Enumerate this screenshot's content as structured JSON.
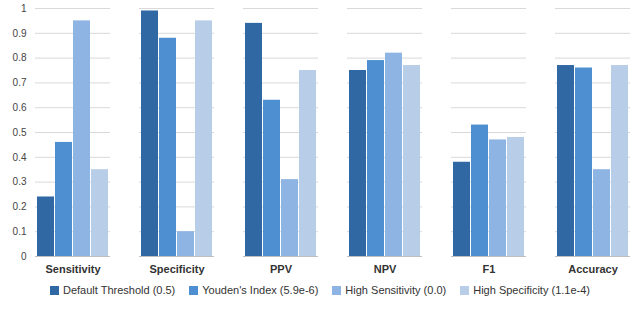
{
  "chart_data": {
    "type": "bar",
    "categories": [
      "Sensitivity",
      "Specificity",
      "PPV",
      "NPV",
      "F1",
      "Accuracy"
    ],
    "series": [
      {
        "name": "Default Threshold (0.5)",
        "color": "#2f68a3",
        "values": [
          0.24,
          0.99,
          0.94,
          0.75,
          0.38,
          0.77
        ]
      },
      {
        "name": "Youden's Index (5.9e-6)",
        "color": "#4d8fd0",
        "values": [
          0.46,
          0.88,
          0.63,
          0.79,
          0.53,
          0.76
        ]
      },
      {
        "name": "High Sensitivity (0.0)",
        "color": "#8eb4e3",
        "values": [
          0.95,
          0.1,
          0.31,
          0.82,
          0.47,
          0.35
        ]
      },
      {
        "name": "High Specificity (1.1e-4)",
        "color": "#b7cde8",
        "values": [
          0.35,
          0.95,
          0.75,
          0.77,
          0.48,
          0.77
        ]
      }
    ],
    "ylim": [
      0,
      1
    ],
    "yticks": [
      0,
      0.1,
      0.2,
      0.3,
      0.4,
      0.5,
      0.6,
      0.7,
      0.8,
      0.9,
      1
    ],
    "grid": true,
    "legend": "bottom"
  }
}
